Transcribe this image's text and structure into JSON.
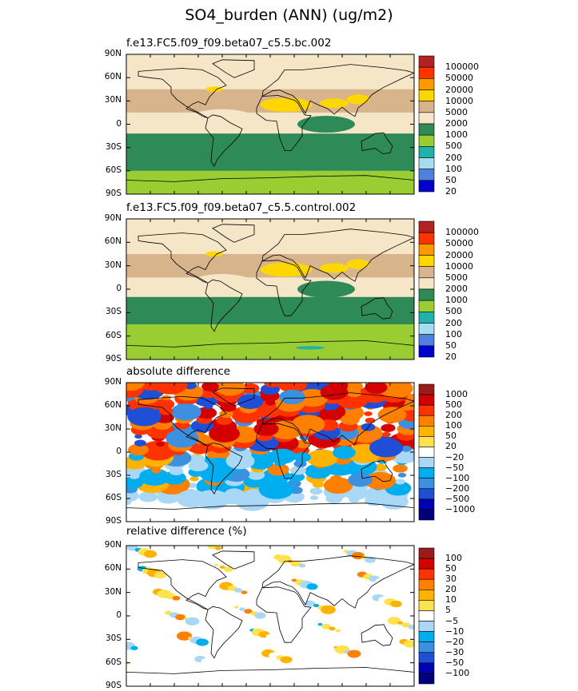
{
  "title": "SO4_burden (ANN) (ug/m2)",
  "panel_titles": [
    "f.e13.FC5.f09_f09.beta07_c5.5.bc.002",
    "f.e13.FC5.f09_f09.beta07_c5.5.control.002",
    "absolute difference",
    "relative difference (%)"
  ],
  "lat_ticks": [
    "90N",
    "60N",
    "30N",
    "0",
    "30S",
    "60S",
    "90S"
  ],
  "chart_data": [
    {
      "type": "heatmap",
      "title": "f.e13.FC5.f09_f09.beta07_c5.5.bc.002",
      "y_axis": {
        "ticks": [
          "90N",
          "60N",
          "30N",
          "0",
          "30S",
          "60S",
          "90S"
        ],
        "range": [
          -90,
          90
        ]
      },
      "colorbar": {
        "levels": [
          "100000",
          "50000",
          "20000",
          "10000",
          "5000",
          "2000",
          "1000",
          "500",
          "200",
          "100",
          "50",
          "20"
        ],
        "colors": [
          "#b22222",
          "#ff3300",
          "#ff9900",
          "#ffd700",
          "#d8b48c",
          "#f5e6c8",
          "#2e8b57",
          "#9acd32",
          "#20b2aa",
          "#a6dcef",
          "#4f7fdf",
          "#0000cd"
        ]
      }
    },
    {
      "type": "heatmap",
      "title": "f.e13.FC5.f09_f09.beta07_c5.5.control.002",
      "y_axis": {
        "ticks": [
          "90N",
          "60N",
          "30N",
          "0",
          "30S",
          "60S",
          "90S"
        ],
        "range": [
          -90,
          90
        ]
      },
      "colorbar": {
        "levels": [
          "100000",
          "50000",
          "20000",
          "10000",
          "5000",
          "2000",
          "1000",
          "500",
          "200",
          "100",
          "50",
          "20"
        ],
        "colors": [
          "#b22222",
          "#ff3300",
          "#ff9900",
          "#ffd700",
          "#d8b48c",
          "#f5e6c8",
          "#2e8b57",
          "#9acd32",
          "#20b2aa",
          "#a6dcef",
          "#4f7fdf",
          "#0000cd"
        ]
      }
    },
    {
      "type": "heatmap",
      "title": "absolute difference",
      "y_axis": {
        "ticks": [
          "90N",
          "60N",
          "30N",
          "0",
          "30S",
          "60S",
          "90S"
        ],
        "range": [
          -90,
          90
        ]
      },
      "colorbar": {
        "levels": [
          "1000",
          "500",
          "200",
          "100",
          "50",
          "20",
          "−20",
          "−50",
          "−100",
          "−200",
          "−500",
          "−1000"
        ],
        "colors": [
          "#9b1b1b",
          "#d40000",
          "#ff3300",
          "#ff7f00",
          "#ffb300",
          "#ffe24d",
          "#ffffff",
          "#a8d8f5",
          "#00aeef",
          "#3d8fe0",
          "#1f4fd6",
          "#0000b0",
          "#00007a"
        ]
      }
    },
    {
      "type": "heatmap",
      "title": "relative difference (%)",
      "y_axis": {
        "ticks": [
          "90N",
          "60N",
          "30N",
          "0",
          "30S",
          "60S",
          "90S"
        ],
        "range": [
          -90,
          90
        ]
      },
      "colorbar": {
        "levels": [
          "100",
          "50",
          "30",
          "20",
          "10",
          "5",
          "−5",
          "−10",
          "−20",
          "−30",
          "−50",
          "−100"
        ],
        "colors": [
          "#9b1b1b",
          "#d40000",
          "#ff3300",
          "#ff7f00",
          "#ffb300",
          "#ffe24d",
          "#ffffff",
          "#a8d8f5",
          "#00aeef",
          "#3d8fe0",
          "#1f4fd6",
          "#0000b0",
          "#00007a"
        ]
      }
    }
  ]
}
